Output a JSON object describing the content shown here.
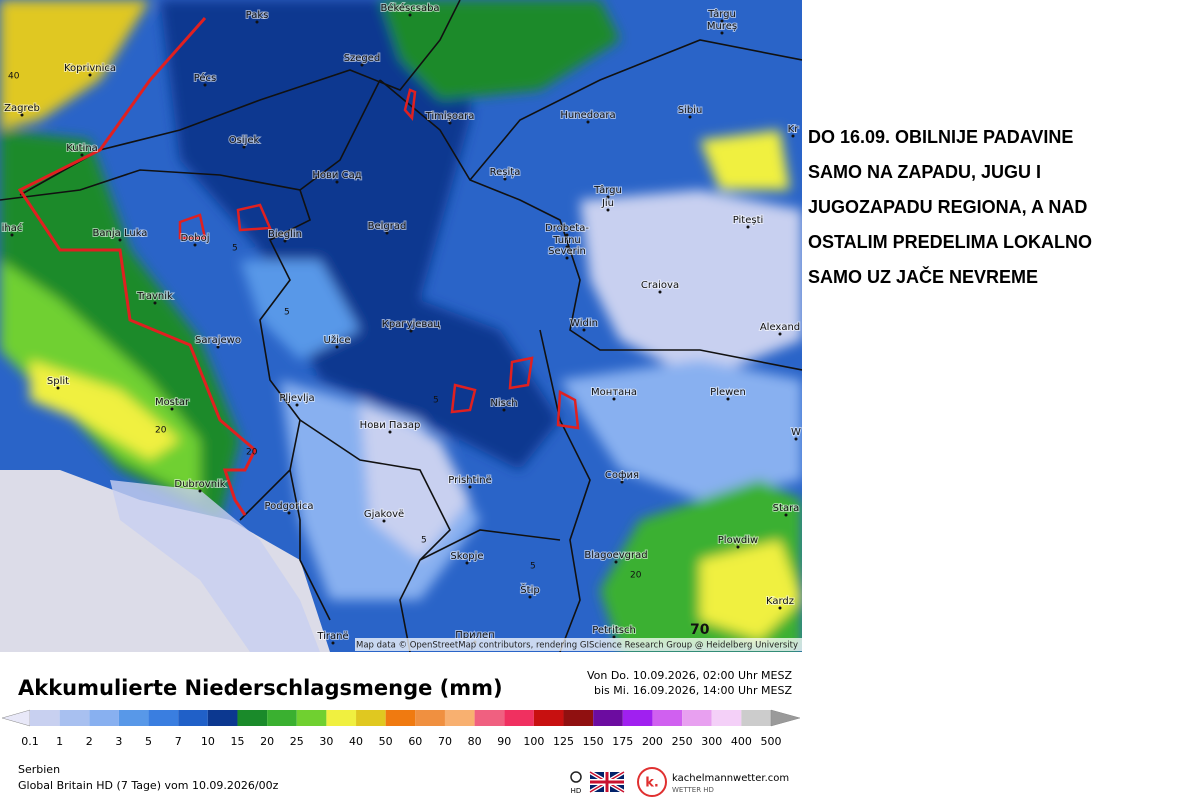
{
  "map": {
    "cities": [
      "Paks",
      "Békéscsaba",
      "Târgu",
      "Mureș",
      "Koprivnica",
      "Pécs",
      "Szeged",
      "Zagreb",
      "Timișoara",
      "Hunedoara",
      "Sibiu",
      "Kr",
      "Kutina",
      "Osijek",
      "Нови Сад",
      "Reșița",
      "Târgu",
      "Jiu",
      "Pitești",
      "ihać",
      "Banja Luka",
      "Doboj",
      "Bieglin",
      "Belgrad",
      "Drobeta-",
      "Turnu",
      "Severin",
      "Craiova",
      "Travnik",
      "Sarajewo",
      "Užice",
      "Крагујевац",
      "Widin",
      "Alexand",
      "Split",
      "Mostar",
      "Pljevlja",
      "Nisch",
      "Монтана",
      "Plewen",
      "W",
      "Нови Пазар",
      "Prishtinë",
      "София",
      "Dubrovnik",
      "Podgorica",
      "Gjakovë",
      "Stara",
      "Skopje",
      "Blagoevgrad",
      "Plowdiw",
      "Štip",
      "Kardz",
      "Tiranë",
      "Прилеп",
      "Petritsch"
    ],
    "contour_labels": [
      "40",
      "5",
      "5",
      "20",
      "20",
      "5",
      "5",
      "5",
      "20",
      "70"
    ],
    "attribution": "Map data © OpenStreetMap contributors, rendering GIScience Research Group @ Heidelberg University"
  },
  "note": [
    "DO 16.09. OBILNIJE PADAVINE",
    "SAMO NA ZAPADU, JUGU I",
    "JUGOZAPADU REGIONA, A NAD",
    "OSTALIM PREDELIMA LOKALNO",
    "SAMO UZ JAČE NEVREME"
  ],
  "legend": {
    "title": "Akkumulierte Niederschlagsmenge (mm)",
    "period_from": "Von Do. 10.09.2026, 02:00 Uhr MESZ",
    "period_to": "bis Mi. 16.09.2026, 14:00 Uhr MESZ",
    "values": [
      0.1,
      1,
      2,
      3,
      5,
      7,
      10,
      15,
      20,
      25,
      30,
      40,
      50,
      60,
      70,
      80,
      90,
      100,
      125,
      150,
      175,
      200,
      250,
      300,
      400,
      500
    ],
    "colors": [
      "#e8e8f8",
      "#c8d0f0",
      "#a8c0f0",
      "#88b0f0",
      "#5898e8",
      "#3a7ee0",
      "#2060c8",
      "#0c3890",
      "#1a8a2a",
      "#3ab030",
      "#70d030",
      "#f0f040",
      "#e0c820",
      "#f07a10",
      "#f09040",
      "#f8b070",
      "#f06080",
      "#f03060",
      "#c81010",
      "#901010",
      "#6c0ca0",
      "#a020f0",
      "#d060f0",
      "#e8a0f0",
      "#f4d0f8",
      "#cccccc",
      "#9a9a9a"
    ]
  },
  "footer": {
    "region": "Serbien",
    "model": "Global Britain HD (7 Tage) vom  10.09.2026/00z",
    "hd": "HD",
    "brand": "kachelmannwetter.com",
    "brand_sub": "WETTER HD"
  }
}
